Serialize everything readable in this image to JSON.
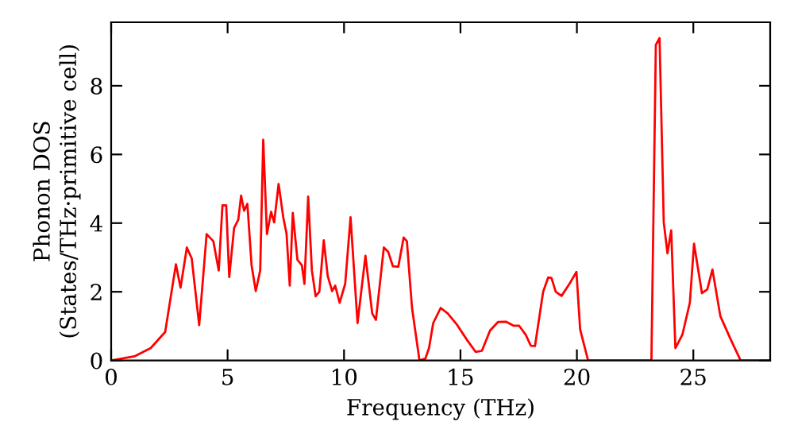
{
  "chart_data": {
    "type": "line",
    "xlabel": "Frequency (THz)",
    "ylabel": "Phonon DOS\n(States/THz·primitive cell)",
    "xlim": [
      0,
      28.3
    ],
    "ylim": [
      0,
      9.85
    ],
    "xticks": [
      0,
      5,
      10,
      15,
      20,
      25
    ],
    "yticks": [
      0,
      2,
      4,
      6,
      8
    ],
    "grid": false,
    "legend": false,
    "marker": "none",
    "line_style": "solid",
    "series": [
      {
        "color": "#ff0000",
        "x": [
          0,
          1.0,
          1.7,
          2.32,
          2.78,
          2.98,
          3.25,
          3.46,
          3.78,
          4.1,
          4.39,
          4.62,
          4.78,
          4.94,
          5.07,
          5.28,
          5.46,
          5.58,
          5.71,
          5.85,
          6.03,
          6.21,
          6.4,
          6.53,
          6.69,
          6.87,
          7.0,
          7.19,
          7.39,
          7.53,
          7.67,
          7.8,
          8.0,
          8.19,
          8.3,
          8.46,
          8.62,
          8.78,
          8.94,
          9.13,
          9.3,
          9.49,
          9.62,
          9.81,
          10.05,
          10.28,
          10.58,
          10.92,
          11.21,
          11.37,
          11.71,
          11.9,
          12.1,
          12.33,
          12.56,
          12.7,
          12.92,
          13.24,
          13.49,
          13.65,
          13.83,
          14.15,
          14.45,
          14.83,
          15.29,
          15.65,
          15.92,
          16.27,
          16.61,
          16.95,
          17.29,
          17.52,
          17.8,
          18.02,
          18.2,
          18.55,
          18.77,
          18.91,
          19.09,
          19.34,
          19.68,
          19.98,
          20.14,
          20.48,
          23.2,
          23.39,
          23.55,
          23.73,
          23.89,
          24.05,
          24.23,
          24.53,
          24.85,
          25.03,
          25.37,
          25.6,
          25.82,
          26.16,
          26.62,
          27.03,
          28.3
        ],
        "values": [
          0,
          0.12,
          0.36,
          0.83,
          2.8,
          2.12,
          3.29,
          2.97,
          1.03,
          3.68,
          3.47,
          2.62,
          4.52,
          4.52,
          2.43,
          3.86,
          4.1,
          4.8,
          4.36,
          4.56,
          2.77,
          2.02,
          2.62,
          6.43,
          3.68,
          4.33,
          4.02,
          5.14,
          4.17,
          3.7,
          2.18,
          4.3,
          2.93,
          2.77,
          2.23,
          4.77,
          2.62,
          1.87,
          2.0,
          3.5,
          2.46,
          2.02,
          2.18,
          1.68,
          2.23,
          4.17,
          1.09,
          3.05,
          1.37,
          1.18,
          3.29,
          3.16,
          2.74,
          2.73,
          3.58,
          3.47,
          1.53,
          0,
          0.05,
          0.36,
          1.09,
          1.53,
          1.37,
          1.06,
          0.59,
          0.25,
          0.28,
          0.87,
          1.12,
          1.13,
          1.01,
          1.01,
          0.75,
          0.43,
          0.42,
          2.0,
          2.42,
          2.4,
          2.0,
          1.88,
          2.23,
          2.58,
          0.9,
          0,
          0,
          9.19,
          9.39,
          4.02,
          3.12,
          3.79,
          0.36,
          0.75,
          1.68,
          3.4,
          1.96,
          2.07,
          2.65,
          1.29,
          0.59,
          0,
          0
        ]
      }
    ]
  }
}
